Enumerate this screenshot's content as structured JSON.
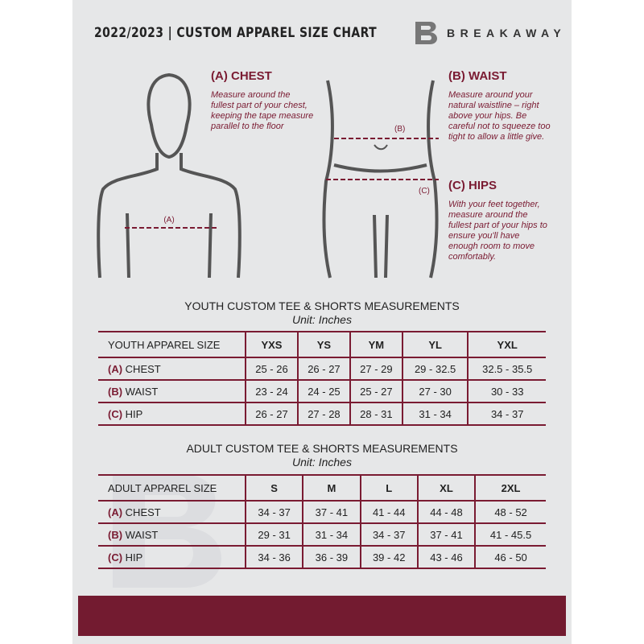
{
  "header": {
    "title": "2022/2023  |  CUSTOM APPAREL SIZE CHART",
    "brand": "BREAKAWAY"
  },
  "chest": {
    "heading": "(A) CHEST",
    "text": "Measure around the fullest part of your chest, keeping the tape measure parallel to the floor",
    "marker": "(A)"
  },
  "waist": {
    "heading": "(B) WAIST",
    "text": "Measure around your natural waistline – right above your hips. Be careful not to squeeze too tight to allow a little give.",
    "marker": "(B)"
  },
  "hips": {
    "heading": "(C) HIPS",
    "text": "With your feet together, measure around the fullest part of your hips to ensure you'll have enough room to move comfortably.",
    "marker": "(C)"
  },
  "accent": "#7a1b32",
  "youth": {
    "title": "YOUTH CUSTOM TEE & SHORTS MEASUREMENTS",
    "unit": "Unit: Inches",
    "size_label": "YOUTH APPAREL SIZE",
    "sizes": [
      "YXS",
      "YS",
      "YM",
      "YL",
      "YXL"
    ],
    "rows": [
      {
        "letter": "(A)",
        "name": "CHEST",
        "values": [
          "25 - 26",
          "26 - 27",
          "27 - 29",
          "29 - 32.5",
          "32.5 - 35.5"
        ]
      },
      {
        "letter": "(B)",
        "name": "WAIST",
        "values": [
          "23 - 24",
          "24 - 25",
          "25 - 27",
          "27 - 30",
          "30 - 33"
        ]
      },
      {
        "letter": "(C)",
        "name": "HIP",
        "values": [
          "26 - 27",
          "27 - 28",
          "28 - 31",
          "31 - 34",
          "34 - 37"
        ]
      }
    ]
  },
  "adult": {
    "title": "ADULT CUSTOM TEE & SHORTS MEASUREMENTS",
    "unit": "Unit: Inches",
    "size_label": "ADULT APPAREL SIZE",
    "sizes": [
      "S",
      "M",
      "L",
      "XL",
      "2XL"
    ],
    "rows": [
      {
        "letter": "(A)",
        "name": "CHEST",
        "values": [
          "34 - 37",
          "37 - 41",
          "41 - 44",
          "44 - 48",
          "48 - 52"
        ]
      },
      {
        "letter": "(B)",
        "name": "WAIST",
        "values": [
          "29 - 31",
          "31 - 34",
          "34 - 37",
          "37 - 41",
          "41 - 45.5"
        ]
      },
      {
        "letter": "(C)",
        "name": "HIP",
        "values": [
          "34 - 36",
          "36 - 39",
          "39 - 42",
          "43 - 46",
          "46 - 50"
        ]
      }
    ]
  }
}
